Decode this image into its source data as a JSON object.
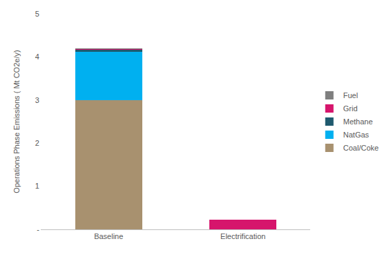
{
  "chart_data": {
    "type": "bar",
    "stacked": true,
    "y_label": "Operations Phase Emissions ( Mt CO2e/y)",
    "categories": [
      "Baseline",
      "Electrification"
    ],
    "series": [
      {
        "name": "Coal/Coke",
        "color": "#a8916f",
        "values": [
          3.0,
          0
        ]
      },
      {
        "name": "NatGas",
        "color": "#00b0f0",
        "values": [
          1.12,
          0
        ]
      },
      {
        "name": "Methane",
        "color": "#1f5a6e",
        "values": [
          0.04,
          0
        ]
      },
      {
        "name": "Grid",
        "color": "#d6156c",
        "values": [
          0.02,
          0.22
        ]
      },
      {
        "name": "Fuel",
        "color": "#7f7f7f",
        "values": [
          0.02,
          0
        ]
      }
    ],
    "ylim": [
      0,
      5
    ],
    "yticks": [
      {
        "value": 0,
        "label": "-"
      },
      1,
      2,
      3,
      4,
      5
    ],
    "grid": false,
    "legend": "right"
  }
}
